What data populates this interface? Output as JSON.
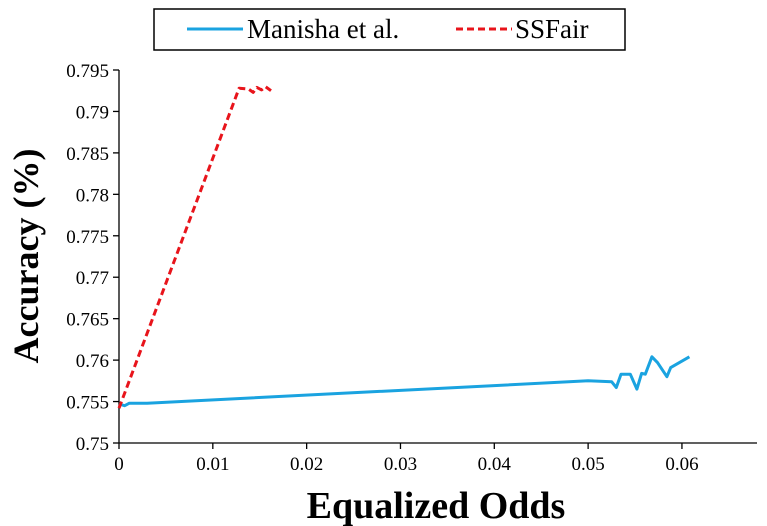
{
  "chart_data": {
    "type": "line",
    "xlabel": "Equalized Odds",
    "ylabel": "Accuracy (%)",
    "xlim": [
      0,
      0.068
    ],
    "ylim": [
      0.75,
      0.795
    ],
    "x_ticks": [
      "0",
      "0.01",
      "0.02",
      "0.03",
      "0.04",
      "0.05",
      "0.06"
    ],
    "y_ticks": [
      "0.75",
      "0.755",
      "0.76",
      "0.765",
      "0.77",
      "0.775",
      "0.78",
      "0.785",
      "0.79",
      "0.795"
    ],
    "grid": false,
    "legend_position": "top",
    "series": [
      {
        "name": "Manisha et al.",
        "color": "#1aa3e0",
        "style": "solid",
        "points": [
          [
            0.0,
            0.7547
          ],
          [
            0.0006,
            0.7545
          ],
          [
            0.0011,
            0.7548
          ],
          [
            0.003,
            0.7548
          ],
          [
            0.05,
            0.7575
          ],
          [
            0.0525,
            0.7574
          ],
          [
            0.053,
            0.7567
          ],
          [
            0.0535,
            0.7583
          ],
          [
            0.0545,
            0.7583
          ],
          [
            0.0552,
            0.7565
          ],
          [
            0.0557,
            0.7584
          ],
          [
            0.0561,
            0.7583
          ],
          [
            0.0568,
            0.7604
          ],
          [
            0.0574,
            0.7597
          ],
          [
            0.0584,
            0.758
          ],
          [
            0.0588,
            0.7591
          ],
          [
            0.0608,
            0.7604
          ]
        ]
      },
      {
        "name": "SSFair",
        "color": "#e8141b",
        "style": "dashed",
        "points": [
          [
            0.0,
            0.7542
          ],
          [
            0.0128,
            0.7928
          ],
          [
            0.0138,
            0.7927
          ],
          [
            0.0143,
            0.7923
          ],
          [
            0.0147,
            0.7929
          ],
          [
            0.0152,
            0.7926
          ],
          [
            0.0156,
            0.793
          ],
          [
            0.0162,
            0.7925
          ]
        ]
      }
    ]
  }
}
